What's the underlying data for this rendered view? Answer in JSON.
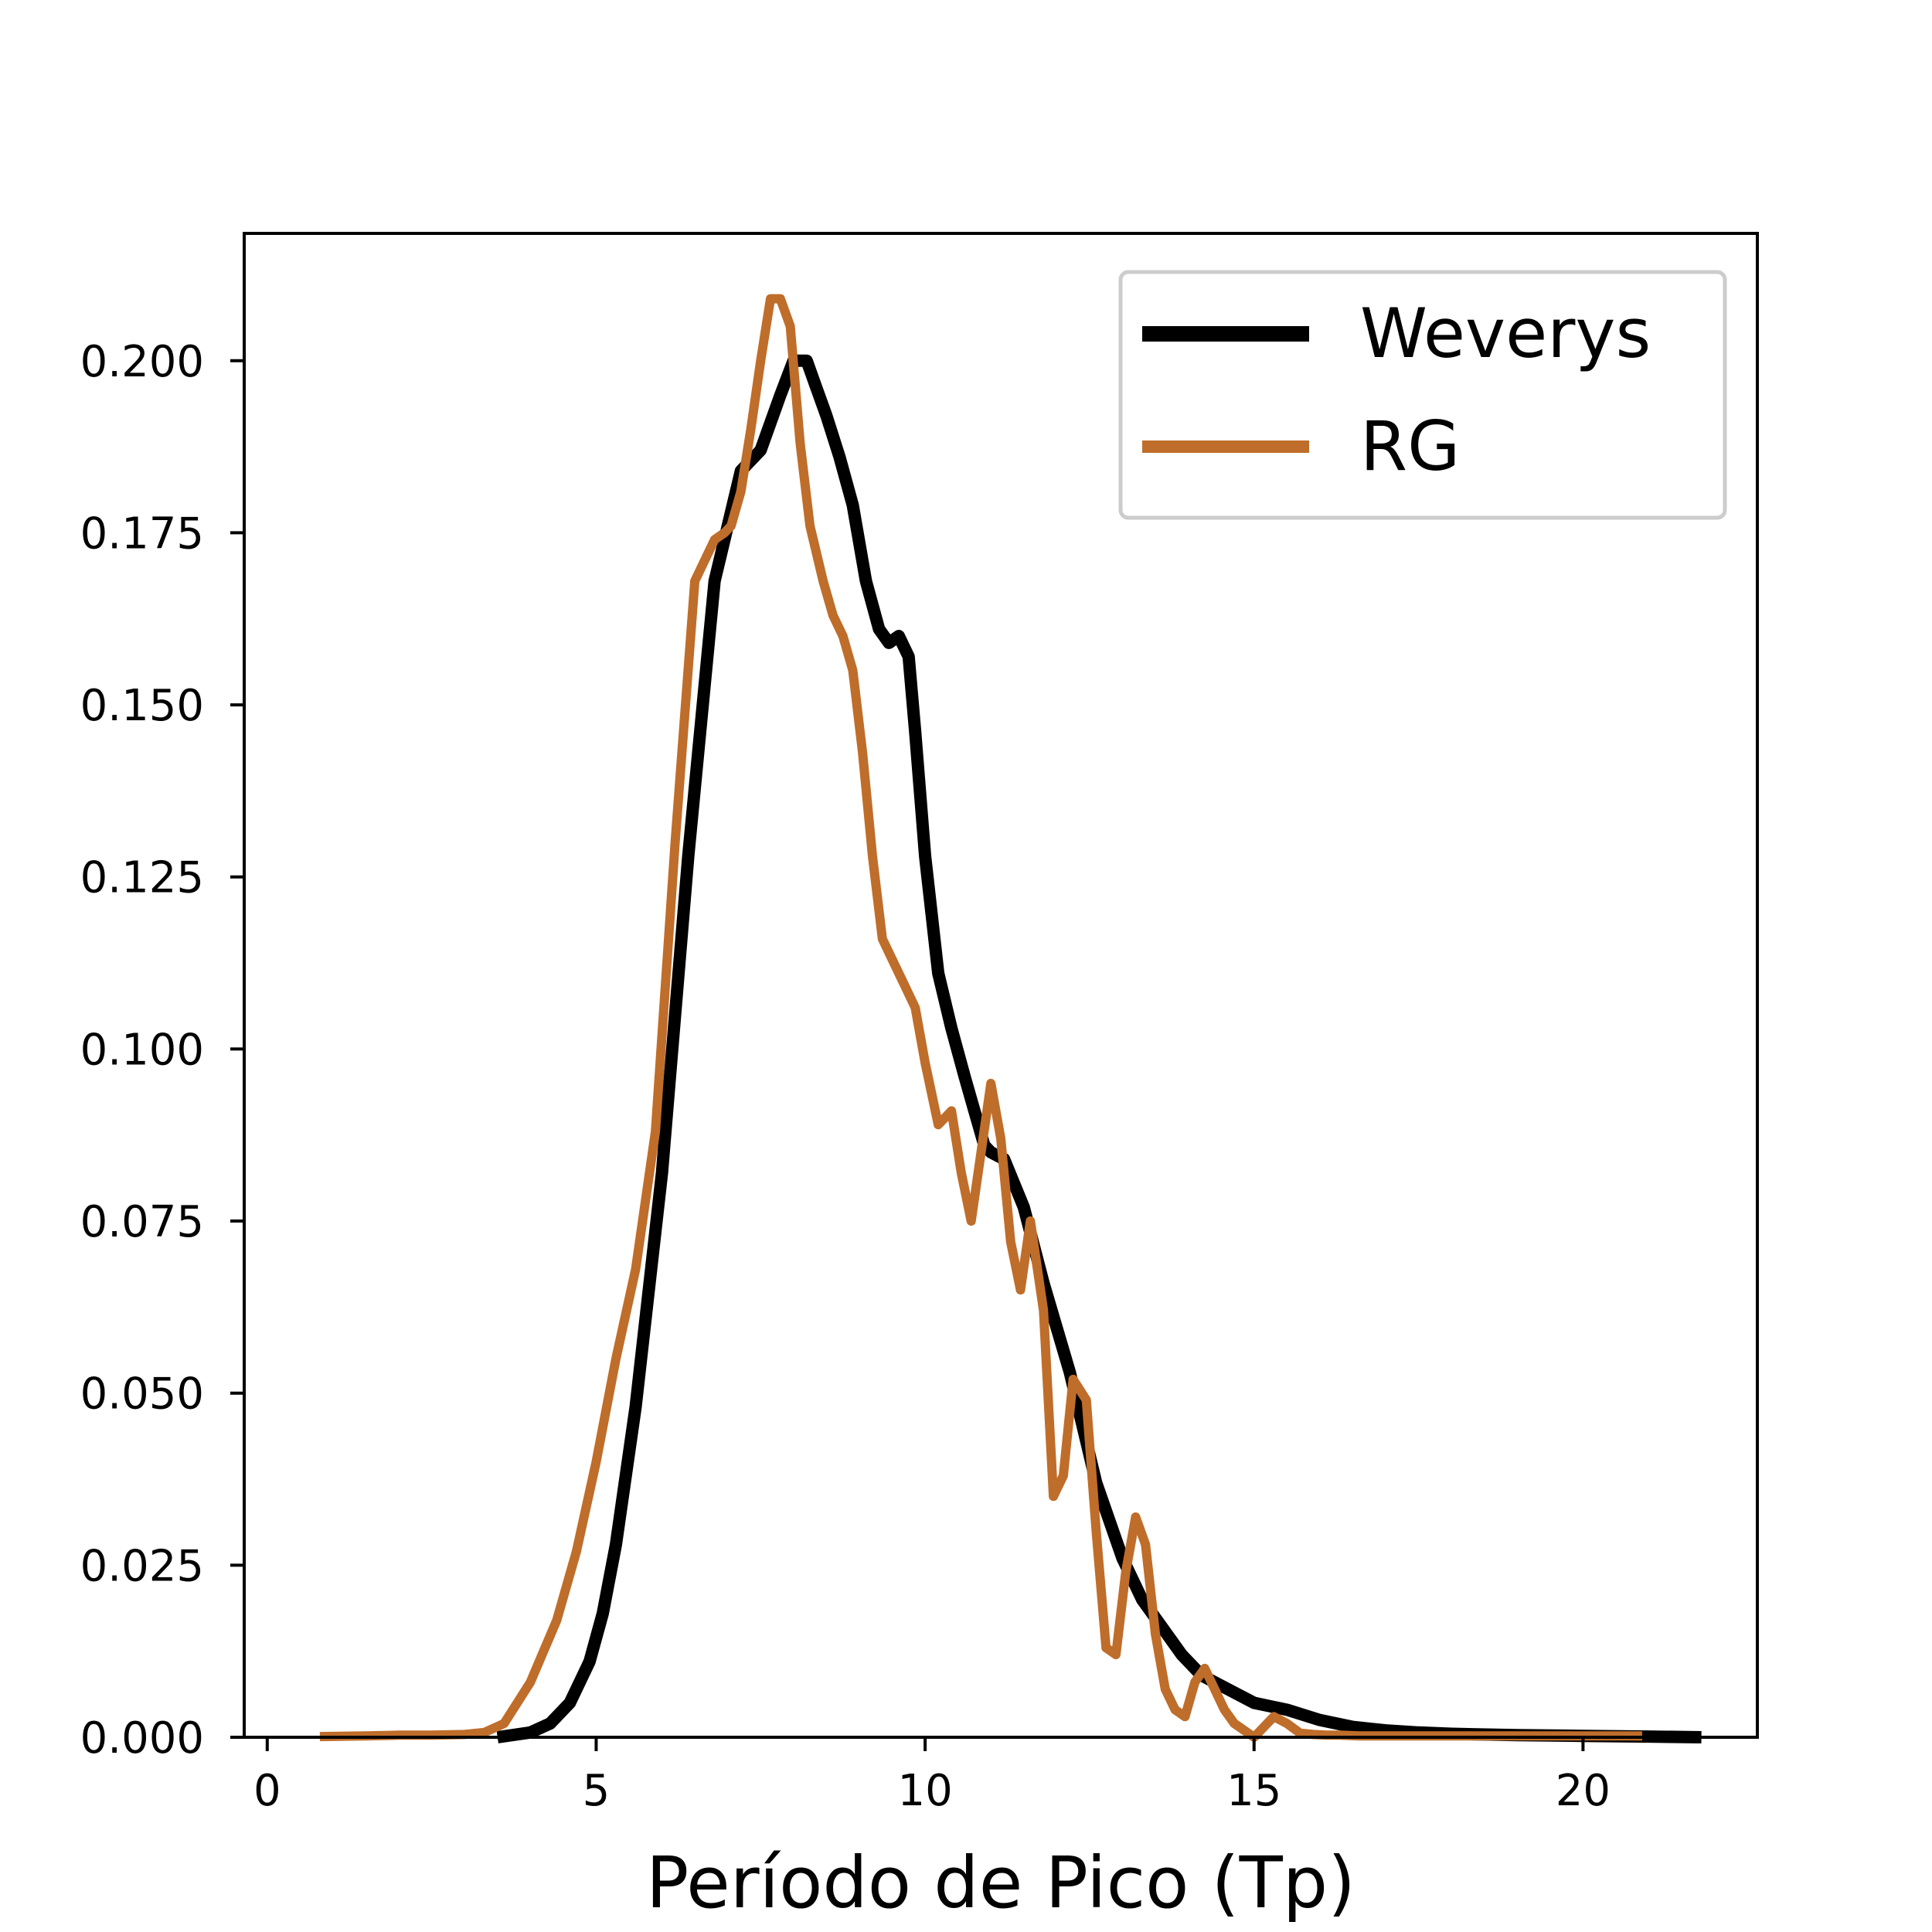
{
  "chart_data": {
    "type": "line",
    "title": "",
    "xlabel": "Período de Pico (Tp)",
    "ylabel": "",
    "xlim": [
      -0.35,
      22.65
    ],
    "ylim": [
      0,
      0.2185
    ],
    "xticks": [
      0,
      5,
      10,
      15,
      20
    ],
    "xtick_labels": [
      "0",
      "5",
      "10",
      "15",
      "20"
    ],
    "yticks": [
      0,
      0.025,
      0.05,
      0.075,
      0.1,
      0.125,
      0.15,
      0.175,
      0.2
    ],
    "ytick_labels": [
      "0.000",
      "0.025",
      "0.050",
      "0.075",
      "0.100",
      "0.125",
      "0.150",
      "0.175",
      "0.200"
    ],
    "grid": false,
    "legend_position": "top-right",
    "series": [
      {
        "name": "Weverys",
        "color": "#000000",
        "x": [
          3.5,
          4.0,
          4.3,
          4.6,
          4.9,
          5.1,
          5.3,
          5.6,
          6.0,
          6.4,
          6.8,
          7.2,
          7.5,
          7.8,
          8.0,
          8.2,
          8.35,
          8.5,
          8.7,
          8.9,
          9.1,
          9.3,
          9.45,
          9.6,
          9.75,
          9.85,
          10.0,
          10.2,
          10.4,
          10.6,
          10.75,
          10.9,
          11.0,
          11.2,
          11.5,
          11.8,
          12.2,
          12.6,
          13.0,
          13.3,
          13.6,
          13.9,
          14.2,
          14.6,
          15.0,
          15.5,
          16.0,
          16.5,
          17.0,
          17.5,
          18.0,
          19.0,
          20.0,
          21.0,
          21.8
        ],
        "y": [
          0.0,
          0.0007,
          0.002,
          0.005,
          0.011,
          0.018,
          0.028,
          0.048,
          0.082,
          0.128,
          0.168,
          0.184,
          0.187,
          0.195,
          0.2,
          0.2,
          0.196,
          0.192,
          0.186,
          0.179,
          0.168,
          0.161,
          0.159,
          0.16,
          0.157,
          0.146,
          0.128,
          0.111,
          0.103,
          0.096,
          0.091,
          0.086,
          0.085,
          0.084,
          0.077,
          0.066,
          0.053,
          0.037,
          0.026,
          0.02,
          0.016,
          0.012,
          0.009,
          0.007,
          0.005,
          0.004,
          0.0025,
          0.0015,
          0.001,
          0.0007,
          0.0005,
          0.0003,
          0.0002,
          0.0001,
          0.0
        ]
      },
      {
        "name": "RG",
        "color": "#bf6d2a",
        "x": [
          0.8,
          1.5,
          2.0,
          2.5,
          3.0,
          3.3,
          3.6,
          4.0,
          4.4,
          4.7,
          5.0,
          5.3,
          5.6,
          5.9,
          6.2,
          6.5,
          6.8,
          6.95,
          7.05,
          7.2,
          7.35,
          7.5,
          7.65,
          7.8,
          7.95,
          8.1,
          8.25,
          8.45,
          8.6,
          8.75,
          8.9,
          9.05,
          9.2,
          9.35,
          9.55,
          9.7,
          9.85,
          10.0,
          10.2,
          10.4,
          10.55,
          10.7,
          10.85,
          11.0,
          11.15,
          11.3,
          11.45,
          11.6,
          11.8,
          11.95,
          12.1,
          12.25,
          12.45,
          12.6,
          12.75,
          12.9,
          13.05,
          13.2,
          13.35,
          13.5,
          13.65,
          13.8,
          13.95,
          14.1,
          14.25,
          14.4,
          14.55,
          14.7,
          14.85,
          15.0,
          15.15,
          15.3,
          15.5,
          15.7,
          15.9,
          16.1,
          16.3,
          16.6,
          17.0,
          17.4,
          18.0,
          19.0,
          20.0,
          20.9
        ],
        "y": [
          0.0001,
          0.0002,
          0.0003,
          0.0003,
          0.0004,
          0.0007,
          0.002,
          0.008,
          0.017,
          0.027,
          0.04,
          0.055,
          0.068,
          0.088,
          0.13,
          0.168,
          0.174,
          0.175,
          0.176,
          0.181,
          0.19,
          0.2,
          0.209,
          0.209,
          0.205,
          0.188,
          0.176,
          0.168,
          0.163,
          0.16,
          0.155,
          0.143,
          0.128,
          0.116,
          0.112,
          0.109,
          0.106,
          0.098,
          0.089,
          0.091,
          0.082,
          0.075,
          0.085,
          0.095,
          0.087,
          0.072,
          0.065,
          0.075,
          0.062,
          0.035,
          0.038,
          0.052,
          0.049,
          0.03,
          0.013,
          0.012,
          0.024,
          0.032,
          0.028,
          0.015,
          0.007,
          0.004,
          0.003,
          0.008,
          0.01,
          0.007,
          0.004,
          0.002,
          0.001,
          0.0,
          0.0015,
          0.003,
          0.002,
          0.0006,
          0.0004,
          0.0003,
          0.0003,
          0.0002,
          0.0002,
          0.0002,
          0.0002,
          0.0002,
          0.0002,
          0.0002
        ]
      }
    ]
  }
}
